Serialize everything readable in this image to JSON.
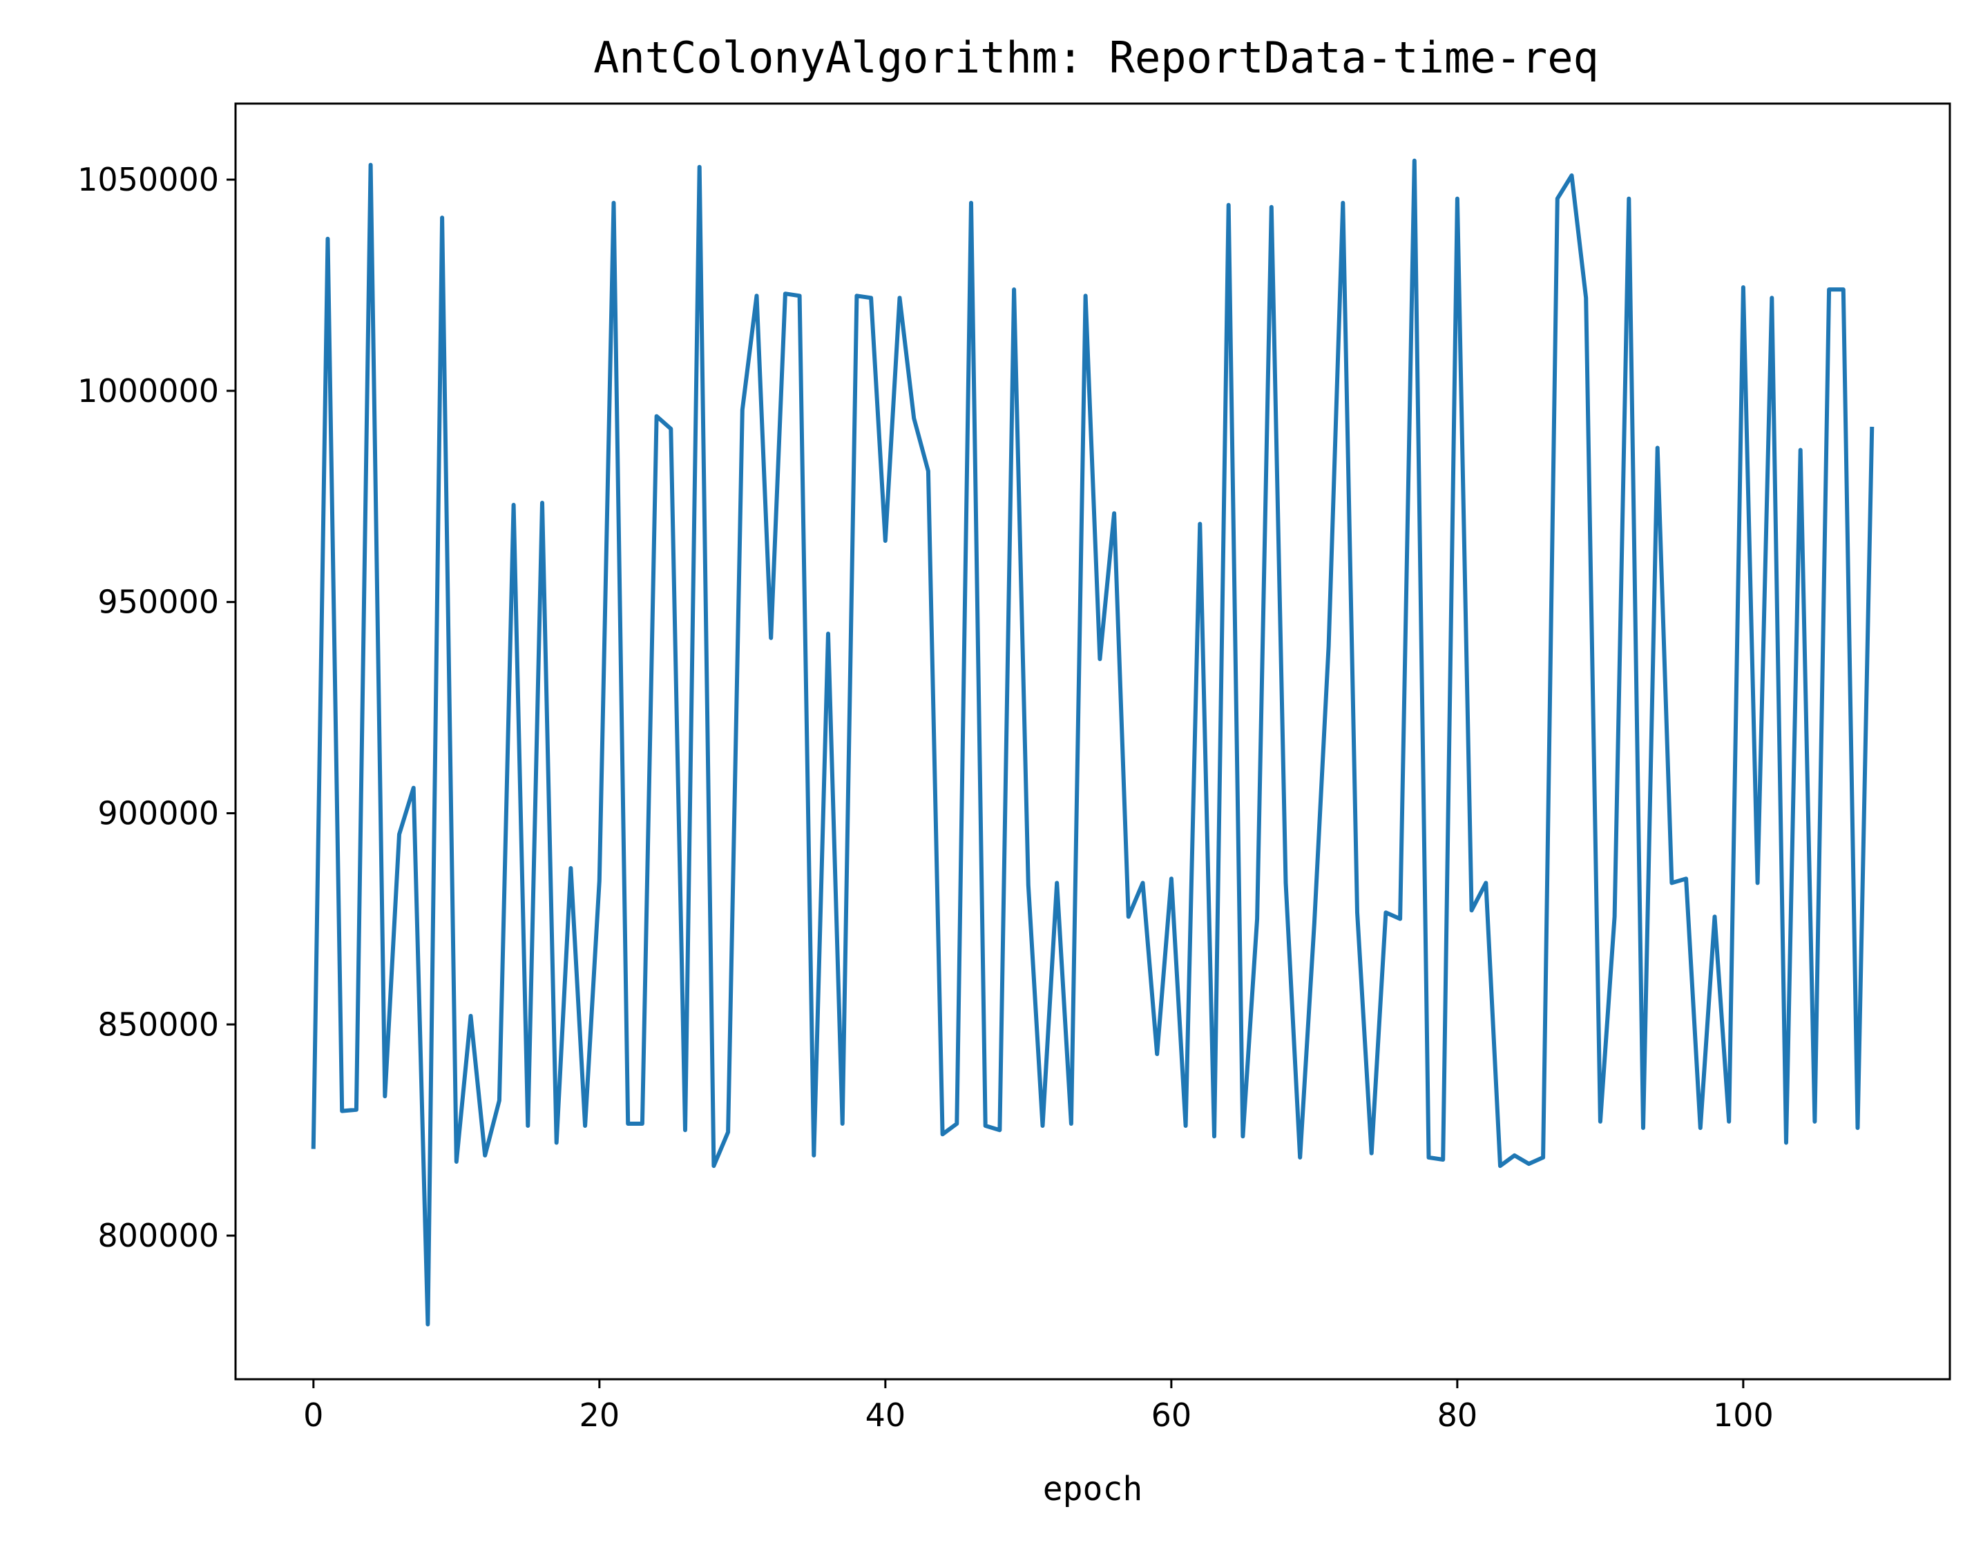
{
  "chart_data": {
    "type": "line",
    "title": "AntColonyAlgorithm: ReportData-time-req",
    "xlabel": "epoch",
    "ylabel": "",
    "xlim": [
      -5.45,
      114.45
    ],
    "ylim": [
      766000,
      1068000
    ],
    "xticks": [
      0,
      20,
      40,
      60,
      80,
      100
    ],
    "yticks": [
      800000,
      850000,
      900000,
      950000,
      1000000,
      1050000
    ],
    "grid": false,
    "series_color": "#1f77b4",
    "series": [
      {
        "values": [
          821000,
          1036000,
          829500,
          829800,
          1053500,
          833000,
          895000,
          906000,
          779000,
          1041000,
          817500,
          852000,
          819000,
          832000,
          973000,
          826000,
          973500,
          822000,
          887000,
          826000,
          884000,
          1044500,
          826500,
          826500,
          994000,
          991000,
          825000,
          1053000,
          816500,
          824500,
          995500,
          1022500,
          941500,
          1023000,
          1022500,
          819000,
          942500,
          826500,
          1022500,
          1022000,
          964500,
          1022000,
          993500,
          981000,
          824000,
          826500,
          1044500,
          826000,
          825000,
          1024000,
          883000,
          826000,
          883500,
          826500,
          1022500,
          936500,
          971000,
          875500,
          883500,
          843000,
          884500,
          826000,
          968500,
          823500,
          1044000,
          823500,
          875000,
          1043500,
          883500,
          818500,
          874000,
          939500,
          1044500,
          876500,
          819500,
          876500,
          875000,
          1054500,
          818500,
          818000,
          1045500,
          877000,
          883500,
          816500,
          819000,
          817000,
          818500,
          1045500,
          1051000,
          1022000,
          827000,
          875500,
          1045500,
          825500,
          986500,
          883500,
          884500,
          825500,
          875500,
          827000,
          1024500,
          883500,
          1022000,
          822000,
          986000,
          827000,
          1024000,
          1024000,
          825500,
          991000
        ]
      }
    ]
  }
}
